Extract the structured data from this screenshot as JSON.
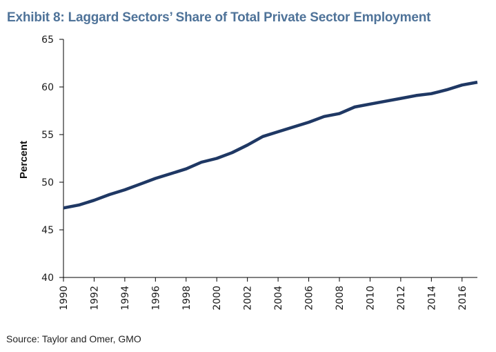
{
  "colors": {
    "title": "#4F7399",
    "line": "#1F3864",
    "axis": "#000000"
  },
  "source": "Source: Taylor and Omer, GMO",
  "chart_data": {
    "type": "line",
    "title": "Exhibit 8: Laggard Sectors’ Share of Total Private Sector Employment",
    "xlabel": "",
    "ylabel": "Percent",
    "ylim": [
      40,
      65
    ],
    "xlim": [
      1990,
      2017
    ],
    "yticks": [
      40,
      45,
      50,
      55,
      60,
      65
    ],
    "xticks": [
      1990,
      1992,
      1994,
      1996,
      1998,
      2000,
      2002,
      2004,
      2006,
      2008,
      2010,
      2012,
      2014,
      2016
    ],
    "grid": false,
    "legend": "none",
    "x": [
      1990,
      1991,
      1992,
      1993,
      1994,
      1995,
      1996,
      1997,
      1998,
      1999,
      2000,
      2001,
      2002,
      2003,
      2004,
      2005,
      2006,
      2007,
      2008,
      2009,
      2010,
      2011,
      2012,
      2013,
      2014,
      2015,
      2016,
      2017
    ],
    "series": [
      {
        "name": "Laggard sectors' share",
        "values": [
          47.3,
          47.6,
          48.1,
          48.7,
          49.2,
          49.8,
          50.4,
          50.9,
          51.4,
          52.1,
          52.5,
          53.1,
          53.9,
          54.8,
          55.3,
          55.8,
          56.3,
          56.9,
          57.2,
          57.9,
          58.2,
          58.5,
          58.8,
          59.1,
          59.3,
          59.7,
          60.2,
          60.5
        ]
      }
    ]
  }
}
